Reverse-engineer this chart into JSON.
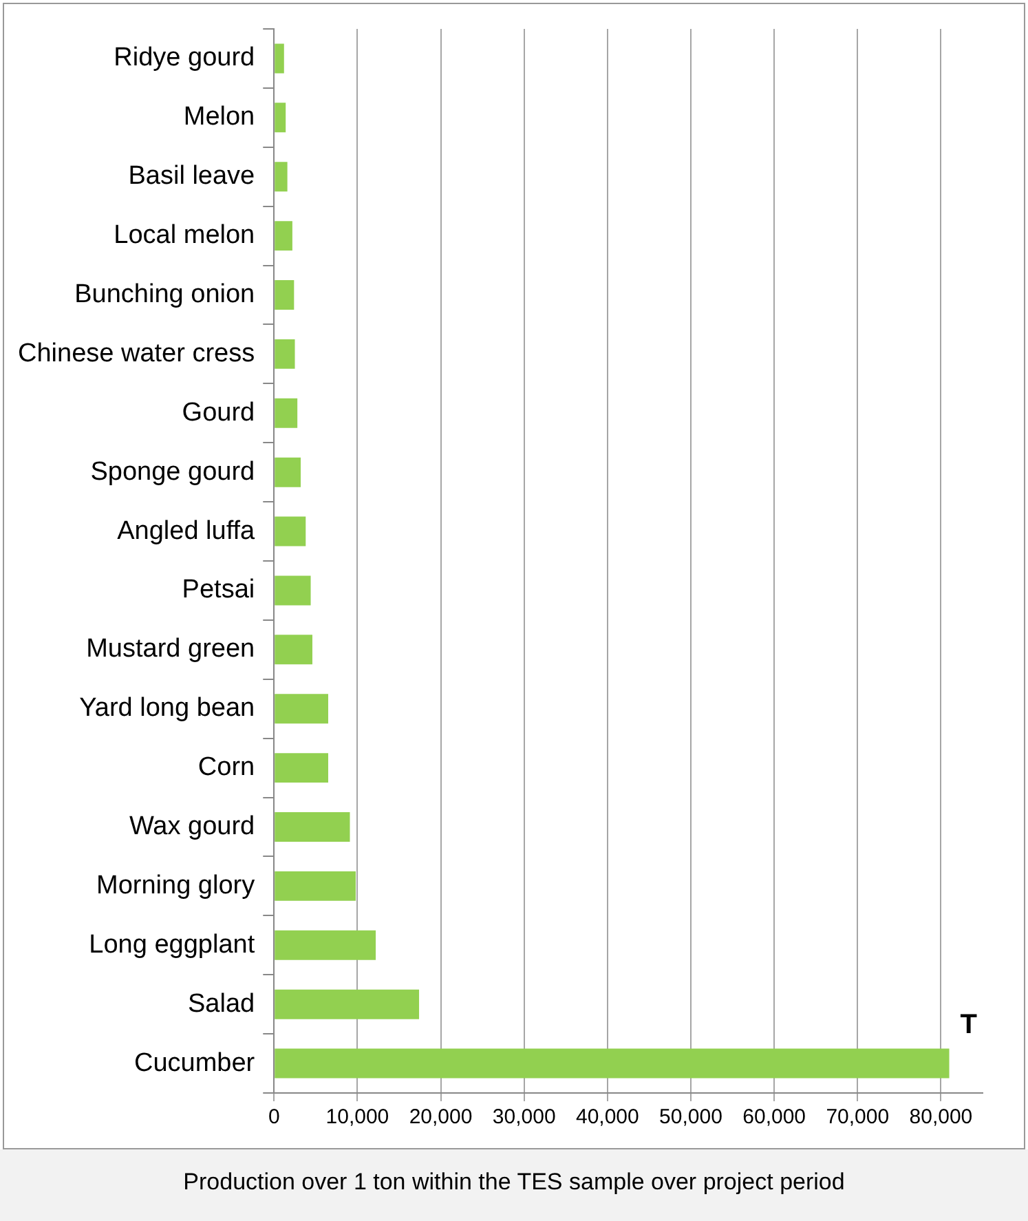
{
  "chart_data": {
    "type": "bar",
    "orientation": "horizontal",
    "title": "Production over 1 ton within the TES sample over project period",
    "categories": [
      "Ridye gourd",
      "Melon",
      "Basil leave",
      "Local melon",
      "Bunching onion",
      "Chinese water cress",
      "Gourd",
      "Sponge gourd",
      "Angled luffa",
      "Petsai",
      "Mustard green",
      "Yard long bean",
      "Corn",
      "Wax gourd",
      "Morning glory",
      "Long eggplant",
      "Salad",
      "Cucumber"
    ],
    "values": [
      1200,
      1400,
      1600,
      2200,
      2400,
      2500,
      2800,
      3200,
      3800,
      4400,
      4600,
      6500,
      6500,
      9100,
      9800,
      12200,
      17400,
      81000
    ],
    "color": "#92d050",
    "xlim": [
      0,
      85000
    ],
    "xticks": [
      {
        "value": 0,
        "label": "0"
      },
      {
        "value": 10000,
        "label": "10,000"
      },
      {
        "value": 20000,
        "label": "20,000"
      },
      {
        "value": 30000,
        "label": "30,000"
      },
      {
        "value": 40000,
        "label": "40,000"
      },
      {
        "value": 50000,
        "label": "50,000"
      },
      {
        "value": 60000,
        "label": "60,000"
      },
      {
        "value": 70000,
        "label": "70,000"
      },
      {
        "value": 80000,
        "label": "80,000"
      }
    ],
    "grid": "x",
    "legend": false,
    "annotations": [
      "T"
    ]
  }
}
